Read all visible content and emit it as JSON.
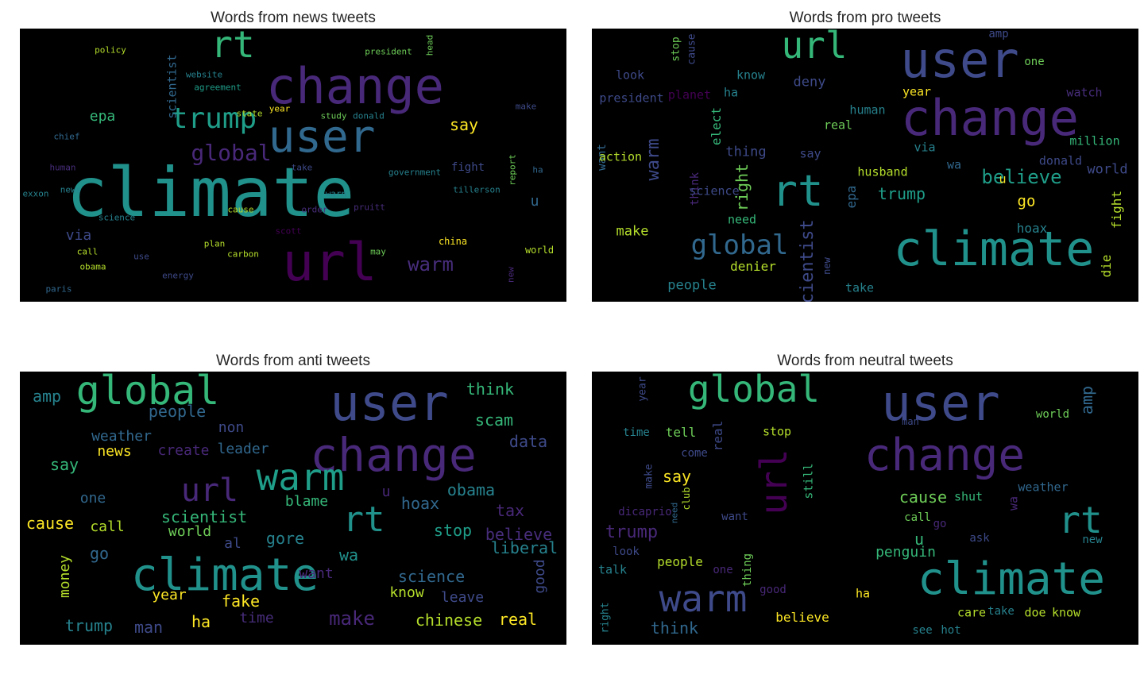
{
  "panels": [
    {
      "id": "news",
      "title": "Words from news tweets",
      "words": [
        {
          "text": "climate",
          "color": "#21918c"
        },
        {
          "text": "url",
          "color": "#440154"
        },
        {
          "text": "change",
          "color": "#482878"
        },
        {
          "text": "user",
          "color": "#31688e"
        },
        {
          "text": "rt",
          "color": "#35b779"
        },
        {
          "text": "trump",
          "color": "#1f9e89"
        },
        {
          "text": "global",
          "color": "#482878"
        },
        {
          "text": "warm",
          "color": "#472d7b"
        },
        {
          "text": "say",
          "color": "#fde725"
        },
        {
          "text": "epa",
          "color": "#35b779"
        },
        {
          "text": "via",
          "color": "#3e4a89"
        },
        {
          "text": "u",
          "color": "#31688e"
        },
        {
          "text": "scientist",
          "color": "#31688e"
        },
        {
          "text": "policy",
          "color": "#b5de2b"
        },
        {
          "text": "president",
          "color": "#6ece58"
        },
        {
          "text": "head",
          "color": "#6ece58"
        },
        {
          "text": "website",
          "color": "#26828e"
        },
        {
          "text": "agreement",
          "color": "#1f9e89"
        },
        {
          "text": "make",
          "color": "#3e4a89"
        },
        {
          "text": "chief",
          "color": "#31688e"
        },
        {
          "text": "state",
          "color": "#b5de2b"
        },
        {
          "text": "year",
          "color": "#fde725"
        },
        {
          "text": "study",
          "color": "#6ece58"
        },
        {
          "text": "donald",
          "color": "#26828e"
        },
        {
          "text": "human",
          "color": "#472d7b"
        },
        {
          "text": "take",
          "color": "#3e4a89"
        },
        {
          "text": "government",
          "color": "#26828e"
        },
        {
          "text": "fight",
          "color": "#3e4a89"
        },
        {
          "text": "report",
          "color": "#6ece58"
        },
        {
          "text": "ha",
          "color": "#31688e"
        },
        {
          "text": "exxon",
          "color": "#26828e"
        },
        {
          "text": "news",
          "color": "#26828e"
        },
        {
          "text": "warn",
          "color": "#26828e"
        },
        {
          "text": "tillerson",
          "color": "#26828e"
        },
        {
          "text": "cause",
          "color": "#b5de2b"
        },
        {
          "text": "order",
          "color": "#472d7b"
        },
        {
          "text": "pruitt",
          "color": "#472d7b"
        },
        {
          "text": "science",
          "color": "#26828e"
        },
        {
          "text": "scott",
          "color": "#440154"
        },
        {
          "text": "china",
          "color": "#fde725"
        },
        {
          "text": "call",
          "color": "#b5de2b"
        },
        {
          "text": "plan",
          "color": "#b5de2b"
        },
        {
          "text": "carbon",
          "color": "#b5de2b"
        },
        {
          "text": "may",
          "color": "#6ece58"
        },
        {
          "text": "world",
          "color": "#b5de2b"
        },
        {
          "text": "use",
          "color": "#3e4a89"
        },
        {
          "text": "obama",
          "color": "#b5de2b"
        },
        {
          "text": "new",
          "color": "#482878"
        },
        {
          "text": "energy",
          "color": "#3e4a89"
        },
        {
          "text": "paris",
          "color": "#31688e"
        }
      ]
    },
    {
      "id": "pro",
      "title": "Words from pro tweets",
      "words": [
        {
          "text": "user",
          "color": "#3e4a89"
        },
        {
          "text": "change",
          "color": "#482878"
        },
        {
          "text": "climate",
          "color": "#21918c"
        },
        {
          "text": "rt",
          "color": "#21918c"
        },
        {
          "text": "url",
          "color": "#35b779"
        },
        {
          "text": "global",
          "color": "#31688e"
        },
        {
          "text": "warm",
          "color": "#3e4a89"
        },
        {
          "text": "believe",
          "color": "#1f9e89"
        },
        {
          "text": "trump",
          "color": "#1f9e89"
        },
        {
          "text": "go",
          "color": "#fde725"
        },
        {
          "text": "world",
          "color": "#3e4a89"
        },
        {
          "text": "amp",
          "color": "#3e4a89"
        },
        {
          "text": "one",
          "color": "#6ece58"
        },
        {
          "text": "stop",
          "color": "#6ece58"
        },
        {
          "text": "cause",
          "color": "#3e4a89"
        },
        {
          "text": "look",
          "color": "#3e4a89"
        },
        {
          "text": "know",
          "color": "#26828e"
        },
        {
          "text": "deny",
          "color": "#3e4a89"
        },
        {
          "text": "president",
          "color": "#3e4a89"
        },
        {
          "text": "planet",
          "color": "#440154"
        },
        {
          "text": "ha",
          "color": "#26828e"
        },
        {
          "text": "year",
          "color": "#fde725"
        },
        {
          "text": "watch",
          "color": "#472d7b"
        },
        {
          "text": "human",
          "color": "#26828e"
        },
        {
          "text": "elect",
          "color": "#35b779"
        },
        {
          "text": "real",
          "color": "#6ece58"
        },
        {
          "text": "thing",
          "color": "#3e4a89"
        },
        {
          "text": "say",
          "color": "#3e4a89"
        },
        {
          "text": "via",
          "color": "#26828e"
        },
        {
          "text": "million",
          "color": "#35b779"
        },
        {
          "text": "want",
          "color": "#31688e"
        },
        {
          "text": "action",
          "color": "#b5de2b"
        },
        {
          "text": "wa",
          "color": "#31688e"
        },
        {
          "text": "donald",
          "color": "#3e4a89"
        },
        {
          "text": "husband",
          "color": "#b5de2b"
        },
        {
          "text": "right",
          "color": "#6ece58"
        },
        {
          "text": "u",
          "color": "#fde725"
        },
        {
          "text": "think",
          "color": "#482878"
        },
        {
          "text": "science",
          "color": "#3e4a89"
        },
        {
          "text": "epa",
          "color": "#31688e"
        },
        {
          "text": "fight",
          "color": "#b5de2b"
        },
        {
          "text": "need",
          "color": "#35b779"
        },
        {
          "text": "hoax",
          "color": "#26828e"
        },
        {
          "text": "make",
          "color": "#b5de2b"
        },
        {
          "text": "denier",
          "color": "#b5de2b"
        },
        {
          "text": "scientist",
          "color": "#3e4a89"
        },
        {
          "text": "new",
          "color": "#3e4a89"
        },
        {
          "text": "die",
          "color": "#b5de2b"
        },
        {
          "text": "people",
          "color": "#26828e"
        },
        {
          "text": "take",
          "color": "#26828e"
        }
      ]
    },
    {
      "id": "anti",
      "title": "Words from anti tweets",
      "words": [
        {
          "text": "user",
          "color": "#3e4a89"
        },
        {
          "text": "global",
          "color": "#35b779"
        },
        {
          "text": "change",
          "color": "#482878"
        },
        {
          "text": "warm",
          "color": "#1f9e89"
        },
        {
          "text": "url",
          "color": "#482878"
        },
        {
          "text": "rt",
          "color": "#21918c"
        },
        {
          "text": "climate",
          "color": "#21918c"
        },
        {
          "text": "amp",
          "color": "#26828e"
        },
        {
          "text": "people",
          "color": "#31688e"
        },
        {
          "text": "think",
          "color": "#35b779"
        },
        {
          "text": "scam",
          "color": "#35b779"
        },
        {
          "text": "non",
          "color": "#3e4a89"
        },
        {
          "text": "weather",
          "color": "#31688e"
        },
        {
          "text": "data",
          "color": "#3e4a89"
        },
        {
          "text": "news",
          "color": "#fde725"
        },
        {
          "text": "create",
          "color": "#482878"
        },
        {
          "text": "leader",
          "color": "#31688e"
        },
        {
          "text": "say",
          "color": "#35b779"
        },
        {
          "text": "obama",
          "color": "#26828e"
        },
        {
          "text": "one",
          "color": "#31688e"
        },
        {
          "text": "u",
          "color": "#482878"
        },
        {
          "text": "hoax",
          "color": "#31688e"
        },
        {
          "text": "blame",
          "color": "#35b779"
        },
        {
          "text": "tax",
          "color": "#482878"
        },
        {
          "text": "cause",
          "color": "#fde725"
        },
        {
          "text": "call",
          "color": "#b5de2b"
        },
        {
          "text": "scientist",
          "color": "#35b779"
        },
        {
          "text": "stop",
          "color": "#1f9e89"
        },
        {
          "text": "believe",
          "color": "#472d7b"
        },
        {
          "text": "world",
          "color": "#6ece58"
        },
        {
          "text": "gore",
          "color": "#26828e"
        },
        {
          "text": "liberal",
          "color": "#26828e"
        },
        {
          "text": "al",
          "color": "#3e4a89"
        },
        {
          "text": "go",
          "color": "#31688e"
        },
        {
          "text": "wa",
          "color": "#21918c"
        },
        {
          "text": "money",
          "color": "#b5de2b"
        },
        {
          "text": "good",
          "color": "#3e4a89"
        },
        {
          "text": "want",
          "color": "#482878"
        },
        {
          "text": "science",
          "color": "#31688e"
        },
        {
          "text": "year",
          "color": "#fde725"
        },
        {
          "text": "fake",
          "color": "#fde725"
        },
        {
          "text": "know",
          "color": "#b5de2b"
        },
        {
          "text": "leave",
          "color": "#3e4a89"
        },
        {
          "text": "time",
          "color": "#472d7b"
        },
        {
          "text": "make",
          "color": "#482878"
        },
        {
          "text": "trump",
          "color": "#26828e"
        },
        {
          "text": "man",
          "color": "#3e4a89"
        },
        {
          "text": "ha",
          "color": "#fde725"
        },
        {
          "text": "chinese",
          "color": "#b5de2b"
        },
        {
          "text": "real",
          "color": "#fde725"
        }
      ]
    },
    {
      "id": "neutral",
      "title": "Words from neutral tweets",
      "words": [
        {
          "text": "user",
          "color": "#3e4a89"
        },
        {
          "text": "global",
          "color": "#35b779"
        },
        {
          "text": "change",
          "color": "#482878"
        },
        {
          "text": "climate",
          "color": "#21918c"
        },
        {
          "text": "warm",
          "color": "#3e4a89"
        },
        {
          "text": "url",
          "color": "#440154"
        },
        {
          "text": "rt",
          "color": "#21918c"
        },
        {
          "text": "year",
          "color": "#3e4a89"
        },
        {
          "text": "amp",
          "color": "#31688e"
        },
        {
          "text": "world",
          "color": "#6ece58"
        },
        {
          "text": "man",
          "color": "#3e4a89"
        },
        {
          "text": "time",
          "color": "#26828e"
        },
        {
          "text": "tell",
          "color": "#6ece58"
        },
        {
          "text": "real",
          "color": "#3e4a89"
        },
        {
          "text": "stop",
          "color": "#b5de2b"
        },
        {
          "text": "come",
          "color": "#3e4a89"
        },
        {
          "text": "make",
          "color": "#3e4a89"
        },
        {
          "text": "say",
          "color": "#fde725"
        },
        {
          "text": "still",
          "color": "#35b779"
        },
        {
          "text": "weather",
          "color": "#31688e"
        },
        {
          "text": "cause",
          "color": "#6ece58"
        },
        {
          "text": "shut",
          "color": "#35b779"
        },
        {
          "text": "wa",
          "color": "#482878"
        },
        {
          "text": "dicaprio",
          "color": "#482878"
        },
        {
          "text": "need",
          "color": "#31688e"
        },
        {
          "text": "club",
          "color": "#b5de2b"
        },
        {
          "text": "want",
          "color": "#3e4a89"
        },
        {
          "text": "call",
          "color": "#6ece58"
        },
        {
          "text": "go",
          "color": "#482878"
        },
        {
          "text": "trump",
          "color": "#482878"
        },
        {
          "text": "u",
          "color": "#35b779"
        },
        {
          "text": "ask",
          "color": "#3e4a89"
        },
        {
          "text": "new",
          "color": "#26828e"
        },
        {
          "text": "look",
          "color": "#3e4a89"
        },
        {
          "text": "penguin",
          "color": "#35b779"
        },
        {
          "text": "people",
          "color": "#b5de2b"
        },
        {
          "text": "one",
          "color": "#482878"
        },
        {
          "text": "thing",
          "color": "#6ece58"
        },
        {
          "text": "talk",
          "color": "#26828e"
        },
        {
          "text": "good",
          "color": "#482878"
        },
        {
          "text": "ha",
          "color": "#fde725"
        },
        {
          "text": "right",
          "color": "#26828e"
        },
        {
          "text": "think",
          "color": "#31688e"
        },
        {
          "text": "believe",
          "color": "#fde725"
        },
        {
          "text": "care",
          "color": "#b5de2b"
        },
        {
          "text": "take",
          "color": "#26828e"
        },
        {
          "text": "doe",
          "color": "#b5de2b"
        },
        {
          "text": "know",
          "color": "#b5de2b"
        },
        {
          "text": "see",
          "color": "#26828e"
        },
        {
          "text": "hot",
          "color": "#26828e"
        }
      ]
    }
  ]
}
